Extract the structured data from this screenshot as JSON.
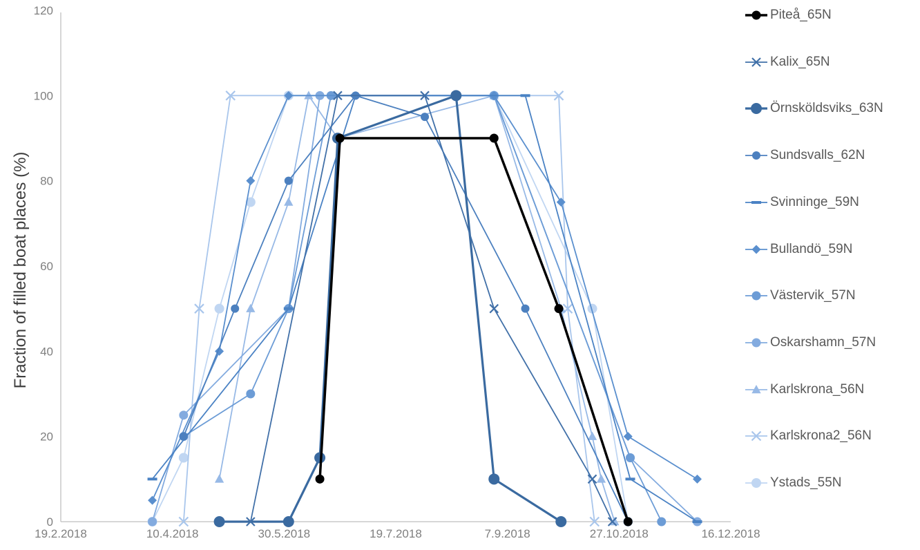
{
  "figure": {
    "y_axis_title": "Fraction of filled boat places (%)",
    "y_ticks": [
      "0",
      "20",
      "40",
      "60",
      "80",
      "100",
      "120"
    ],
    "y_tick_values": [
      0,
      20,
      40,
      60,
      80,
      100,
      120
    ],
    "x_ticks": [
      "19.2.2018",
      "10.4.2018",
      "30.5.2018",
      "19.7.2018",
      "7.9.2018",
      "27.10.2018",
      "16.12.2018"
    ],
    "x_tick_days": [
      50,
      100,
      150,
      200,
      250,
      300,
      350
    ],
    "axis_color": "#bfbfbf",
    "tick_label_color": "#7f7f7f",
    "legend_text_color": "#595959"
  },
  "chart_data": {
    "type": "line",
    "title": "",
    "xlabel": "",
    "ylabel": "Fraction of filled boat places (%)",
    "x_axis": {
      "start_date": "19.2.2018",
      "end_date": "16.12.2018",
      "tick_interval_days": 50
    },
    "ylim": [
      0,
      120
    ],
    "grid": false,
    "legend_position": "right",
    "series": [
      {
        "name": "Piteå_65N",
        "color": "#000000",
        "marker": "circle",
        "line_width": 3.5,
        "marker_size": 6.5,
        "points": [
          [
            "15.6.2018",
            10
          ],
          [
            "24.6.2018",
            90
          ],
          [
            "1.9.2018",
            90
          ],
          [
            "30.9.2018",
            50
          ],
          [
            "31.10.2018",
            0
          ]
        ]
      },
      {
        "name": "Kalix_65N",
        "color": "#4170a8",
        "marker": "x",
        "line_width": 1.8,
        "marker_size": 6,
        "points": [
          [
            "15.5.2018",
            0
          ],
          [
            "23.6.2018",
            100
          ],
          [
            "1.8.2018",
            100
          ],
          [
            "1.9.2018",
            50
          ],
          [
            "15.10.2018",
            10
          ],
          [
            "24.10.2018",
            0
          ]
        ]
      },
      {
        "name": "Örnsköldsviks_63N",
        "color": "#3a6aa0",
        "marker": "circle",
        "line_width": 3.2,
        "marker_size": 8,
        "points": [
          [
            "1.5.2018",
            0
          ],
          [
            "1.6.2018",
            0
          ],
          [
            "15.6.2018",
            15
          ],
          [
            "23.6.2018",
            90
          ],
          [
            "15.8.2018",
            100
          ],
          [
            "1.9.2018",
            10
          ],
          [
            "1.10.2018",
            0
          ]
        ]
      },
      {
        "name": "Sundsvalls_62N",
        "color": "#4c80bf",
        "marker": "circle",
        "line_width": 1.8,
        "marker_size": 6,
        "points": [
          [
            "15.4.2018",
            20
          ],
          [
            "8.5.2018",
            50
          ],
          [
            "1.6.2018",
            80
          ],
          [
            "1.7.2018",
            100
          ],
          [
            "1.8.2018",
            95
          ],
          [
            "15.9.2018",
            50
          ],
          [
            "31.10.2018",
            0
          ]
        ]
      },
      {
        "name": "Svinninge_59N",
        "color": "#4a82c4",
        "marker": "dash",
        "line_width": 1.8,
        "marker_size": 7,
        "points": [
          [
            "1.4.2018",
            10
          ],
          [
            "1.6.2018",
            50
          ],
          [
            "1.7.2018",
            100
          ],
          [
            "15.9.2018",
            100
          ],
          [
            "1.11.2018",
            10
          ],
          [
            "1.12.2018",
            0
          ]
        ]
      },
      {
        "name": "Bullandö_59N",
        "color": "#5a8fce",
        "marker": "diamond",
        "line_width": 1.8,
        "marker_size": 6.5,
        "points": [
          [
            "1.4.2018",
            5
          ],
          [
            "1.5.2018",
            40
          ],
          [
            "15.5.2018",
            80
          ],
          [
            "1.6.2018",
            100
          ],
          [
            "1.9.2018",
            100
          ],
          [
            "1.10.2018",
            75
          ],
          [
            "31.10.2018",
            20
          ],
          [
            "1.12.2018",
            10
          ]
        ]
      },
      {
        "name": "Västervik_57N",
        "color": "#6c9cd6",
        "marker": "circle",
        "line_width": 1.8,
        "marker_size": 6.5,
        "points": [
          [
            "15.4.2018",
            20
          ],
          [
            "15.5.2018",
            30
          ],
          [
            "1.6.2018",
            50
          ],
          [
            "20.6.2018",
            100
          ],
          [
            "1.9.2018",
            100
          ],
          [
            "1.11.2018",
            15
          ],
          [
            "15.11.2018",
            0
          ]
        ]
      },
      {
        "name": "Oskarshamn_57N",
        "color": "#83abdf",
        "marker": "circle",
        "line_width": 1.8,
        "marker_size": 6.5,
        "points": [
          [
            "1.4.2018",
            0
          ],
          [
            "15.4.2018",
            25
          ],
          [
            "1.6.2018",
            50
          ],
          [
            "15.6.2018",
            100
          ],
          [
            "1.9.2018",
            100
          ],
          [
            "1.11.2018",
            15
          ],
          [
            "1.12.2018",
            0
          ]
        ]
      },
      {
        "name": "Karlskrona_56N",
        "color": "#97b9e6",
        "marker": "triangle",
        "line_width": 1.8,
        "marker_size": 7,
        "points": [
          [
            "1.5.2018",
            10
          ],
          [
            "15.5.2018",
            50
          ],
          [
            "1.6.2018",
            75
          ],
          [
            "10.6.2018",
            100
          ],
          [
            "23.6.2018",
            90
          ],
          [
            "1.9.2018",
            100
          ],
          [
            "1.10.2018",
            50
          ],
          [
            "15.10.2018",
            20
          ],
          [
            "19.10.2018",
            10
          ],
          [
            "25.10.2018",
            0
          ]
        ]
      },
      {
        "name": "Karlskrona2_56N",
        "color": "#a9c6ec",
        "marker": "x",
        "line_width": 1.8,
        "marker_size": 6.5,
        "points": [
          [
            "15.4.2018",
            0
          ],
          [
            "22.4.2018",
            50
          ],
          [
            "6.5.2018",
            100
          ],
          [
            "30.9.2018",
            100
          ],
          [
            "4.10.2018",
            50
          ],
          [
            "16.10.2018",
            0
          ]
        ]
      },
      {
        "name": "Ystads_55N",
        "color": "#c0d6f2",
        "marker": "circle",
        "line_width": 1.8,
        "marker_size": 7,
        "points": [
          [
            "1.4.2018",
            0
          ],
          [
            "15.4.2018",
            15
          ],
          [
            "1.5.2018",
            50
          ],
          [
            "15.5.2018",
            75
          ],
          [
            "1.6.2018",
            100
          ],
          [
            "1.9.2018",
            100
          ],
          [
            "15.10.2018",
            50
          ],
          [
            "31.10.2018",
            0
          ]
        ]
      }
    ]
  }
}
